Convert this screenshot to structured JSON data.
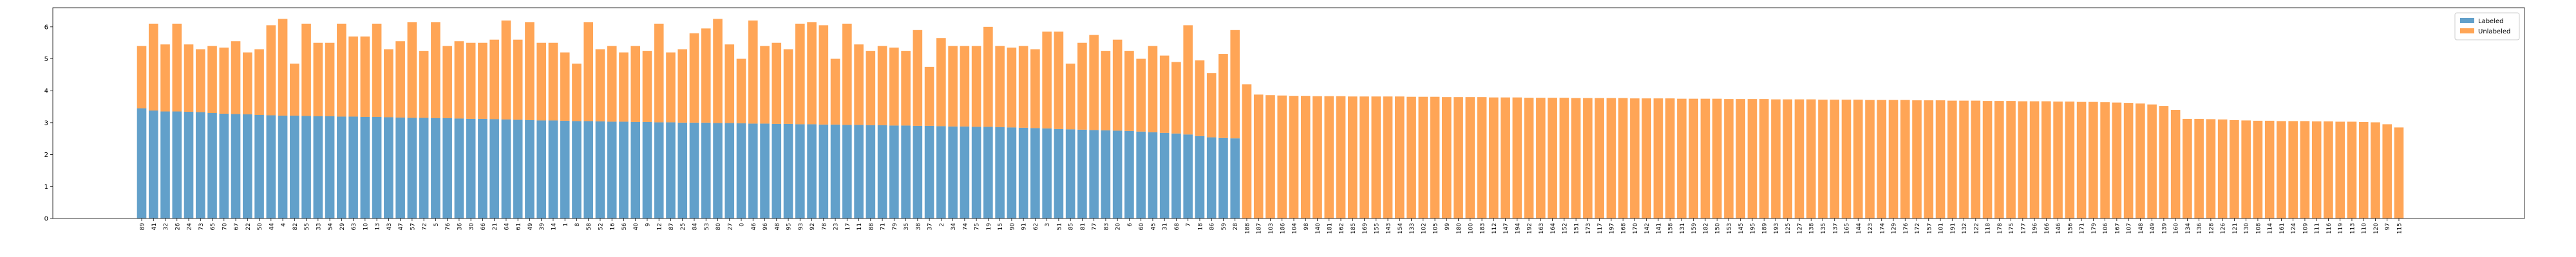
{
  "chart_data": {
    "type": "stacked_bar",
    "categories": [
      "89",
      "41",
      "32",
      "26",
      "24",
      "73",
      "65",
      "70",
      "67",
      "22",
      "50",
      "44",
      "4",
      "82",
      "55",
      "33",
      "54",
      "29",
      "63",
      "10",
      "13",
      "43",
      "47",
      "57",
      "72",
      "5",
      "76",
      "36",
      "30",
      "66",
      "21",
      "64",
      "61",
      "49",
      "39",
      "14",
      "1",
      "8",
      "58",
      "52",
      "16",
      "56",
      "40",
      "9",
      "12",
      "87",
      "25",
      "84",
      "53",
      "80",
      "27",
      "0",
      "46",
      "96",
      "48",
      "95",
      "93",
      "92",
      "78",
      "23",
      "17",
      "11",
      "88",
      "71",
      "79",
      "35",
      "38",
      "37",
      "2",
      "34",
      "74",
      "75",
      "19",
      "15",
      "90",
      "91",
      "62",
      "3",
      "51",
      "85",
      "81",
      "77",
      "83",
      "20",
      "6",
      "60",
      "45",
      "31",
      "68",
      "7",
      "18",
      "86",
      "59",
      "28",
      "188",
      "187",
      "103",
      "186",
      "104",
      "98",
      "140",
      "181",
      "162",
      "185",
      "169",
      "155",
      "143",
      "154",
      "133",
      "102",
      "105",
      "99",
      "180",
      "100",
      "183",
      "112",
      "147",
      "194",
      "192",
      "163",
      "164",
      "152",
      "151",
      "173",
      "117",
      "197",
      "168",
      "170",
      "142",
      "141",
      "158",
      "131",
      "159",
      "182",
      "150",
      "153",
      "145",
      "195",
      "189",
      "193",
      "125",
      "127",
      "138",
      "135",
      "137",
      "165",
      "144",
      "123",
      "174",
      "129",
      "176",
      "172",
      "157",
      "101",
      "191",
      "132",
      "122",
      "118",
      "178",
      "175",
      "177",
      "196",
      "166",
      "146",
      "156",
      "171",
      "179",
      "106",
      "167",
      "107",
      "148",
      "149",
      "139",
      "160",
      "134",
      "136",
      "128",
      "126",
      "121",
      "130",
      "108",
      "114",
      "161",
      "124",
      "109",
      "111",
      "116",
      "119",
      "113",
      "110",
      "120",
      "97",
      "115"
    ],
    "series": [
      {
        "name": "Labeled",
        "color": "#1f77b4",
        "values": [
          3.45,
          3.38,
          3.35,
          3.35,
          3.34,
          3.33,
          3.3,
          3.28,
          3.27,
          3.26,
          3.24,
          3.23,
          3.22,
          3.22,
          3.21,
          3.2,
          3.2,
          3.19,
          3.19,
          3.18,
          3.18,
          3.17,
          3.16,
          3.15,
          3.15,
          3.14,
          3.14,
          3.13,
          3.12,
          3.12,
          3.11,
          3.1,
          3.09,
          3.08,
          3.07,
          3.07,
          3.06,
          3.05,
          3.05,
          3.04,
          3.03,
          3.03,
          3.02,
          3.02,
          3.01,
          3.01,
          3.0,
          3.0,
          3.0,
          2.99,
          2.99,
          2.98,
          2.97,
          2.97,
          2.96,
          2.96,
          2.95,
          2.95,
          2.94,
          2.94,
          2.93,
          2.93,
          2.92,
          2.92,
          2.91,
          2.91,
          2.9,
          2.9,
          2.89,
          2.88,
          2.88,
          2.87,
          2.87,
          2.86,
          2.85,
          2.84,
          2.83,
          2.82,
          2.8,
          2.79,
          2.78,
          2.77,
          2.76,
          2.75,
          2.74,
          2.72,
          2.7,
          2.68,
          2.66,
          2.63,
          2.58,
          2.54,
          2.52,
          2.51,
          null,
          null,
          null,
          null,
          null,
          null,
          null,
          null,
          null,
          null,
          null,
          null,
          null,
          null,
          null,
          null,
          null,
          null,
          null,
          null,
          null,
          null,
          null,
          null,
          null,
          null,
          null,
          null,
          null,
          null,
          null,
          null,
          null,
          null,
          null,
          null,
          null,
          null,
          null,
          null,
          null,
          null,
          null,
          null,
          null,
          null,
          null,
          null,
          null,
          null,
          null,
          null,
          null,
          null,
          null,
          null,
          null,
          null,
          null,
          null,
          null,
          null,
          null,
          null,
          null,
          null,
          null,
          null,
          null,
          null,
          null,
          null,
          null,
          null,
          null,
          null,
          null,
          null,
          null,
          null,
          null,
          null,
          null,
          null,
          null,
          null,
          null,
          null,
          null,
          null,
          null,
          null,
          null,
          null,
          null,
          null,
          null,
          null,
          null
        ]
      },
      {
        "name": "Unlabeled",
        "color": "#ff7f0e",
        "values": [
          1.95,
          2.72,
          2.1,
          2.75,
          2.11,
          1.97,
          2.1,
          2.07,
          2.28,
          1.94,
          2.06,
          2.82,
          3.03,
          1.63,
          2.89,
          2.3,
          2.3,
          2.91,
          2.51,
          2.52,
          2.92,
          2.13,
          2.39,
          3.0,
          2.1,
          3.01,
          2.26,
          2.42,
          2.38,
          2.38,
          2.49,
          3.1,
          2.51,
          3.07,
          2.43,
          2.43,
          2.14,
          1.8,
          3.1,
          2.26,
          2.37,
          2.17,
          2.38,
          2.23,
          3.09,
          2.19,
          2.3,
          2.8,
          2.95,
          3.26,
          2.46,
          2.02,
          3.23,
          2.43,
          2.54,
          2.34,
          3.15,
          3.2,
          3.11,
          2.06,
          3.17,
          2.52,
          2.33,
          2.48,
          2.44,
          2.34,
          3.0,
          1.85,
          2.76,
          2.52,
          2.52,
          2.53,
          3.13,
          2.54,
          2.5,
          2.56,
          2.47,
          3.03,
          3.05,
          2.06,
          2.72,
          2.98,
          2.49,
          2.85,
          2.51,
          2.28,
          2.7,
          2.42,
          2.24,
          3.42,
          2.37,
          2.01,
          2.63,
          3.39,
          4.2,
          3.88,
          3.86,
          3.85,
          3.84,
          3.84,
          3.83,
          3.83,
          3.83,
          3.82,
          3.82,
          3.82,
          3.82,
          3.82,
          3.81,
          3.81,
          3.81,
          3.8,
          3.8,
          3.8,
          3.8,
          3.79,
          3.79,
          3.79,
          3.78,
          3.78,
          3.78,
          3.78,
          3.77,
          3.77,
          3.77,
          3.77,
          3.77,
          3.76,
          3.76,
          3.76,
          3.76,
          3.75,
          3.75,
          3.75,
          3.75,
          3.74,
          3.74,
          3.74,
          3.74,
          3.73,
          3.73,
          3.73,
          3.73,
          3.72,
          3.72,
          3.72,
          3.72,
          3.71,
          3.71,
          3.71,
          3.71,
          3.7,
          3.7,
          3.7,
          3.69,
          3.69,
          3.69,
          3.68,
          3.68,
          3.68,
          3.67,
          3.67,
          3.67,
          3.66,
          3.66,
          3.65,
          3.65,
          3.64,
          3.63,
          3.62,
          3.6,
          3.57,
          3.52,
          3.4,
          3.12,
          3.12,
          3.11,
          3.1,
          3.08,
          3.07,
          3.06,
          3.06,
          3.05,
          3.05,
          3.05,
          3.04,
          3.04,
          3.03,
          3.03,
          3.02,
          3.01,
          2.95,
          2.85
        ]
      }
    ],
    "alpha": 0.7,
    "ylim": [
      0,
      6.6
    ],
    "yticks": [
      0,
      1,
      2,
      3,
      4,
      5,
      6
    ],
    "legend": "upper right"
  }
}
